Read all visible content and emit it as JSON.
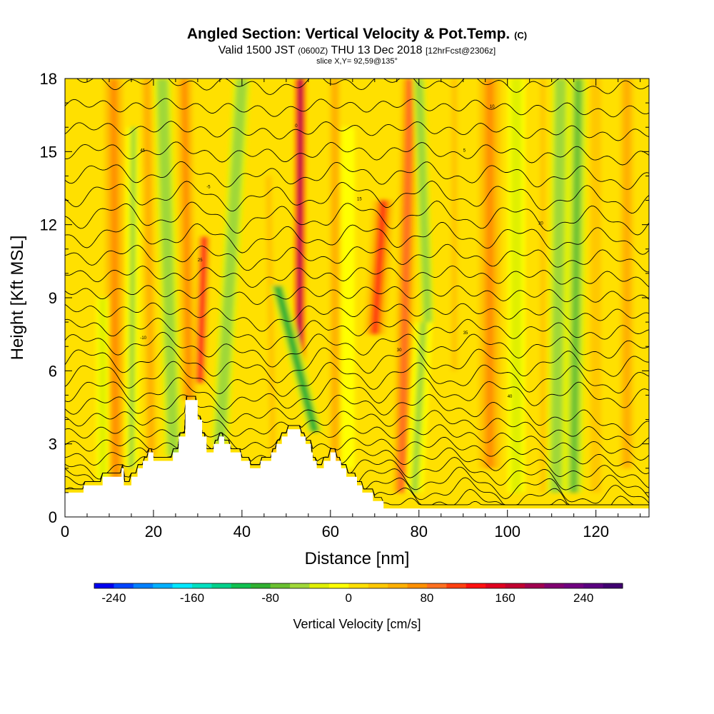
{
  "header": {
    "title_main": "Angled Section: Vertical Velocity & Pot.Temp.",
    "title_tag": "(C)",
    "valid_pre": "Valid 1500 JST",
    "valid_z": "(0600Z)",
    "valid_date": "THU 13 Dec 2018",
    "valid_fcst": "[12hrFcst@2306z]",
    "slice_info": "slice X,Y= 92,59@135°"
  },
  "colors": {
    "background": "#ffffff",
    "terrain": "#ffffff",
    "contour_line": "#000000"
  },
  "chart_data": {
    "type": "heatmap",
    "xlabel": "Distance [nm]",
    "ylabel": "Height [Kft MSL]",
    "xlim": [
      0,
      132
    ],
    "ylim": [
      0,
      18
    ],
    "x_ticks": [
      "0",
      "20",
      "40",
      "60",
      "80",
      "100",
      "120"
    ],
    "y_ticks": [
      "0",
      "3",
      "6",
      "9",
      "12",
      "15",
      "18"
    ],
    "colorbar": {
      "title": "Vertical Velocity [cm/s]",
      "tick_labels": [
        "-240",
        "-160",
        "-80",
        "0",
        "80",
        "160",
        "240"
      ],
      "min": -260,
      "max": 280,
      "step": 20,
      "colors": [
        "#0000f0",
        "#0044ff",
        "#0080ff",
        "#00b0ff",
        "#00e8ff",
        "#00e0c0",
        "#00d08a",
        "#10c050",
        "#30b030",
        "#6ac030",
        "#a0d838",
        "#e0f000",
        "#ffff00",
        "#ffe000",
        "#ffc800",
        "#ffb000",
        "#ff9000",
        "#ff7020",
        "#ff4010",
        "#ff1010",
        "#e00020",
        "#c00030",
        "#a00050",
        "#800070",
        "#700080",
        "#5a0080",
        "#400070"
      ]
    },
    "plumes": [
      {
        "x_bottom": 11.5,
        "x_top": 11.0,
        "y_bottom": 1.5,
        "y_top": 18,
        "width": 2.2,
        "value": 70
      },
      {
        "x_bottom": 8.5,
        "x_top": 8.5,
        "y_bottom": 1.5,
        "y_top": 9,
        "width": 1.4,
        "value": -40
      },
      {
        "x_bottom": 15,
        "x_top": 15.5,
        "y_bottom": 2,
        "y_top": 16,
        "width": 1.6,
        "value": -50
      },
      {
        "x_bottom": 19.5,
        "x_top": 18.5,
        "y_bottom": 2.5,
        "y_top": 18,
        "width": 2.0,
        "value": 40
      },
      {
        "x_bottom": 24.5,
        "x_top": 22,
        "y_bottom": 2.5,
        "y_top": 18,
        "width": 2.0,
        "value": -60
      },
      {
        "x_bottom": 28,
        "x_top": 27,
        "y_bottom": 4.8,
        "y_top": 18,
        "width": 1.8,
        "value": 70
      },
      {
        "x_bottom": 30.5,
        "x_top": 31.5,
        "y_bottom": 5.5,
        "y_top": 11.5,
        "width": 1.3,
        "value": 120
      },
      {
        "x_bottom": 35,
        "x_top": 40,
        "y_bottom": 3,
        "y_top": 18,
        "width": 2.0,
        "value": -60
      },
      {
        "x_bottom": 47,
        "x_top": 46,
        "y_bottom": 2.5,
        "y_top": 14,
        "width": 2.5,
        "value": 20
      },
      {
        "x_bottom": 53,
        "x_top": 53.2,
        "y_bottom": 6,
        "y_top": 18,
        "width": 1.3,
        "value": 190
      },
      {
        "x_bottom": 56.5,
        "x_top": 48,
        "y_bottom": 3.5,
        "y_top": 9.5,
        "width": 1.8,
        "value": -90
      },
      {
        "x_bottom": 61,
        "x_top": 61,
        "y_bottom": 2,
        "y_top": 18,
        "width": 2.0,
        "value": 50
      },
      {
        "x_bottom": 64,
        "x_top": 64,
        "y_bottom": 2,
        "y_top": 16,
        "width": 1.5,
        "value": -20
      },
      {
        "x_bottom": 70,
        "x_top": 72,
        "y_bottom": 7.5,
        "y_top": 13,
        "width": 2.5,
        "value": 100
      },
      {
        "x_bottom": 76,
        "x_top": 78,
        "y_bottom": 1,
        "y_top": 18,
        "width": 2.0,
        "value": 90
      },
      {
        "x_bottom": 79,
        "x_top": 81,
        "y_bottom": 1,
        "y_top": 8,
        "width": 2.0,
        "value": -50
      },
      {
        "x_bottom": 82,
        "x_top": 80,
        "y_bottom": 8,
        "y_top": 18,
        "width": 1.5,
        "value": -60
      },
      {
        "x_bottom": 88,
        "x_top": 88,
        "y_bottom": 6,
        "y_top": 18,
        "width": 2.5,
        "value": 20
      },
      {
        "x_bottom": 96,
        "x_top": 96,
        "y_bottom": 2,
        "y_top": 18,
        "width": 2.5,
        "value": 70
      },
      {
        "x_bottom": 102,
        "x_top": 102,
        "y_bottom": 1,
        "y_top": 18,
        "width": 2.0,
        "value": -30
      },
      {
        "x_bottom": 108,
        "x_top": 108,
        "y_bottom": 1,
        "y_top": 18,
        "width": 2.0,
        "value": 20
      },
      {
        "x_bottom": 111,
        "x_top": 112,
        "y_bottom": 1,
        "y_top": 18,
        "width": 2.0,
        "value": -60
      },
      {
        "x_bottom": 115,
        "x_top": 116,
        "y_bottom": 1,
        "y_top": 18,
        "width": 2.0,
        "value": -70
      },
      {
        "x_bottom": 120,
        "x_top": 120,
        "y_bottom": 1,
        "y_top": 18,
        "width": 2.0,
        "value": 30
      },
      {
        "x_bottom": 127,
        "x_top": 127,
        "y_bottom": 2,
        "y_top": 18,
        "width": 2.5,
        "value": 50
      }
    ],
    "terrain": [
      [
        0,
        1.0
      ],
      [
        4.2,
        1.0
      ],
      [
        4.2,
        1.3
      ],
      [
        8.5,
        1.3
      ],
      [
        8.5,
        1.65
      ],
      [
        12.8,
        1.65
      ],
      [
        12.8,
        2.0
      ],
      [
        13.3,
        2.0
      ],
      [
        13.3,
        1.3
      ],
      [
        15,
        1.3
      ],
      [
        15,
        1.65
      ],
      [
        16.4,
        1.65
      ],
      [
        16.4,
        2.0
      ],
      [
        17.6,
        2.0
      ],
      [
        17.6,
        2.3
      ],
      [
        18.8,
        2.3
      ],
      [
        18.8,
        2.65
      ],
      [
        20,
        2.65
      ],
      [
        20,
        2.3
      ],
      [
        24.4,
        2.3
      ],
      [
        24.4,
        2.65
      ],
      [
        25.7,
        2.65
      ],
      [
        25.7,
        3.3
      ],
      [
        27.2,
        3.3
      ],
      [
        27.2,
        4.8
      ],
      [
        30,
        4.8
      ],
      [
        30,
        4.0
      ],
      [
        31,
        4.0
      ],
      [
        31,
        3.3
      ],
      [
        32,
        3.3
      ],
      [
        32,
        2.65
      ],
      [
        33.6,
        2.65
      ],
      [
        33.6,
        3.0
      ],
      [
        34.8,
        3.0
      ],
      [
        34.8,
        3.3
      ],
      [
        36,
        3.3
      ],
      [
        36,
        3.0
      ],
      [
        37.4,
        3.0
      ],
      [
        37.4,
        2.65
      ],
      [
        39.8,
        2.65
      ],
      [
        39.8,
        2.3
      ],
      [
        41.8,
        2.3
      ],
      [
        41.8,
        2.0
      ],
      [
        44.2,
        2.0
      ],
      [
        44.2,
        2.3
      ],
      [
        46.6,
        2.3
      ],
      [
        46.6,
        2.65
      ],
      [
        47.8,
        2.65
      ],
      [
        47.8,
        3.0
      ],
      [
        49,
        3.0
      ],
      [
        49,
        3.3
      ],
      [
        50.3,
        3.3
      ],
      [
        50.3,
        3.6
      ],
      [
        53.2,
        3.6
      ],
      [
        53.2,
        3.3
      ],
      [
        54.4,
        3.3
      ],
      [
        54.4,
        3.0
      ],
      [
        55.6,
        3.0
      ],
      [
        55.6,
        2.65
      ],
      [
        56,
        2.65
      ],
      [
        56,
        2.3
      ],
      [
        56.9,
        2.3
      ],
      [
        56.9,
        2.0
      ],
      [
        58.5,
        2.0
      ],
      [
        58.5,
        2.3
      ],
      [
        60,
        2.3
      ],
      [
        60,
        2.65
      ],
      [
        61.2,
        2.65
      ],
      [
        61.2,
        2.3
      ],
      [
        62.4,
        2.3
      ],
      [
        62.4,
        2.0
      ],
      [
        63.6,
        2.0
      ],
      [
        63.6,
        1.65
      ],
      [
        66,
        1.65
      ],
      [
        66,
        1.3
      ],
      [
        67.2,
        1.3
      ],
      [
        67.2,
        1.0
      ],
      [
        69.6,
        1.0
      ],
      [
        69.6,
        0.65
      ],
      [
        72,
        0.65
      ],
      [
        72,
        0.35
      ],
      [
        132,
        0.35
      ]
    ],
    "contours": {
      "count": 30,
      "base_low": 0.4,
      "spacing_base": 0.36,
      "spacing_growth": 0.012,
      "label_values": [
        "-10",
        "-5",
        "0",
        "5",
        "10",
        "15",
        "20",
        "25",
        "30",
        "35",
        "40",
        "45",
        "50"
      ]
    }
  }
}
